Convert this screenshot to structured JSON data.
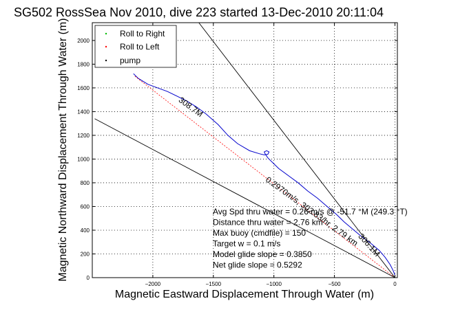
{
  "chart_data": {
    "type": "line",
    "title": "SG502 RossSea Nov 2010, dive 223 started 13-Dec-2010 20:11:04",
    "xlabel": "Magnetic Eastward Displacement Through Water (m)",
    "ylabel": "Magnetic Northward Displacement Through Water (m)",
    "xlim": [
      -2500,
      20
    ],
    "ylim": [
      0,
      2150
    ],
    "xticks": [
      -2000,
      -1500,
      -1000,
      -500,
      0
    ],
    "yticks": [
      0,
      200,
      400,
      600,
      800,
      1000,
      1200,
      1400,
      1600,
      1800,
      2000
    ],
    "grid": true,
    "legend": {
      "placement": "top-left",
      "entries": [
        {
          "label": "Roll to Right",
          "color": "#00bb00",
          "marker": "dot"
        },
        {
          "label": "Roll to Left",
          "color": "#ff0000",
          "marker": "dot"
        },
        {
          "label": "pump",
          "color": "#000000",
          "marker": "dot"
        }
      ]
    },
    "series": [
      {
        "color": "#0000cc",
        "x": [
          0,
          -15,
          -40,
          -80,
          -130,
          -200,
          -280,
          -350,
          -420,
          -480,
          -560,
          -640,
          -720,
          -800,
          -880,
          -960,
          -1000,
          -1050,
          -1070,
          -1080,
          -1060,
          -1040,
          -1050,
          -1080,
          -1120,
          -1200,
          -1300,
          -1380,
          -1460,
          -1560,
          -1640,
          -1720,
          -1800,
          -1880,
          -1960,
          -2040,
          -2120,
          -2160
        ],
        "y": [
          20,
          60,
          110,
          170,
          230,
          290,
          350,
          410,
          470,
          530,
          600,
          670,
          730,
          800,
          860,
          920,
          960,
          1010,
          1040,
          1060,
          1070,
          1060,
          1040,
          1035,
          1045,
          1070,
          1130,
          1200,
          1290,
          1380,
          1440,
          1490,
          1530,
          1570,
          1600,
          1630,
          1680,
          1720
        ]
      },
      {
        "color": "#ff0000",
        "x": [
          0,
          -2150
        ],
        "y": [
          0,
          1700
        ]
      }
    ],
    "reference_lines": [
      {
        "x": [
          0,
          -1620
        ],
        "y": [
          0,
          2150
        ],
        "color": "#000000"
      },
      {
        "x": [
          0,
          -2480
        ],
        "y": [
          0,
          1340
        ],
        "color": "#000000"
      }
    ],
    "line_labels": [
      {
        "text": "308.7M",
        "x": -1700,
        "y": 1420,
        "angle_deg": 36
      },
      {
        "text": "0.2970m/s, 302.83/hr, 2.79 km",
        "x": -700,
        "y": 540,
        "angle_deg": 36
      },
      {
        "text": "306.1M",
        "x": -230,
        "y": 260,
        "angle_deg": 48
      }
    ],
    "annotations": [
      "Avg Spd thru water = 0.26 m/s @ -51.7    °M (249.3 °T)",
      "Distance thru water = 2.76 km",
      "Max buoy (cmdfile) = 150",
      "Target w = 0.1 m/s",
      "Model glide slope = 0.3850",
      "Net glide slope = 0.5292"
    ]
  }
}
